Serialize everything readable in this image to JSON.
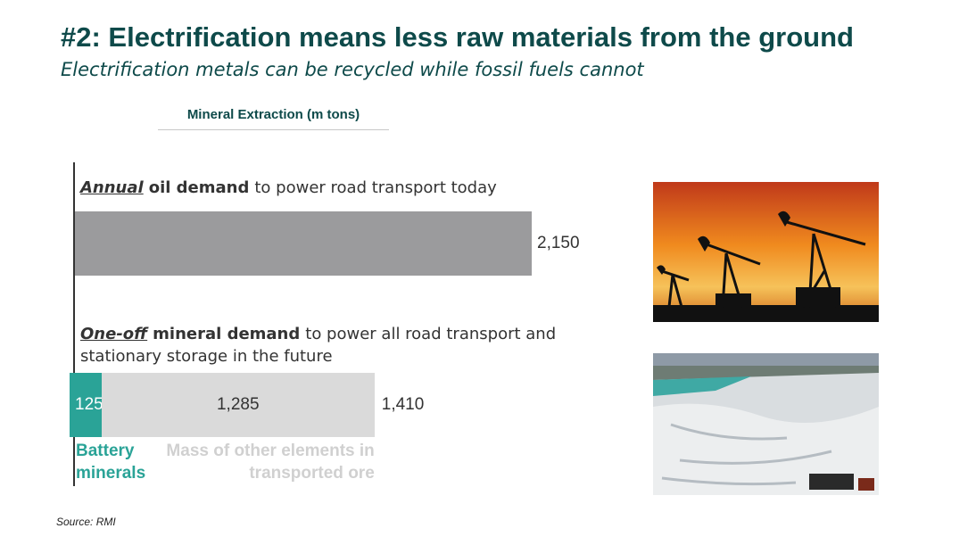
{
  "header": {
    "title": "#2: Electrification means less raw materials from the ground",
    "subtitle": "Electrification metals can be recycled while fossil fuels cannot"
  },
  "chart_data": {
    "type": "bar",
    "orientation": "horizontal",
    "title": "Mineral Extraction (m tons)",
    "xlim": [
      0,
      2150
    ],
    "rows": [
      {
        "label_parts": [
          "Annual",
          "oil demand",
          "to power road transport today"
        ],
        "segments": [
          {
            "value": 2150,
            "value_label": "2,150",
            "color": "#9b9b9d"
          }
        ]
      },
      {
        "label_parts": [
          "One-off",
          "mineral demand",
          "to power all road transport and stationary storage in the future"
        ],
        "segments": [
          {
            "name": "Battery minerals",
            "value": 125,
            "value_label": "125",
            "color": "#2aa397"
          },
          {
            "name": "Mass of other elements in transported ore",
            "value": 1285,
            "value_label": "1,285",
            "color": "#dadada"
          }
        ],
        "total": {
          "value": 1410,
          "label": "1,410"
        }
      }
    ]
  },
  "source": "Source: RMI"
}
